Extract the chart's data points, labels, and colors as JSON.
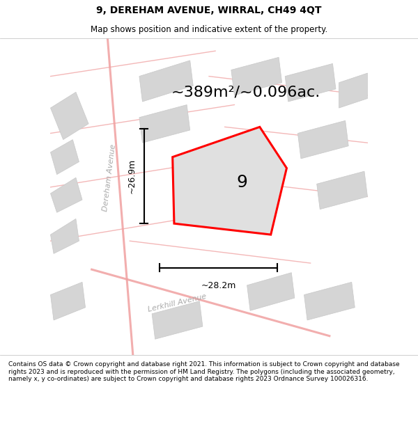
{
  "title": "9, DEREHAM AVENUE, WIRRAL, CH49 4QT",
  "subtitle": "Map shows position and indicative extent of the property.",
  "area_text": "~389m²/~0.096ac.",
  "plot_number": "9",
  "dim_vertical": "~26.9m",
  "dim_horizontal": "~28.2m",
  "street_label_1": "Dereham Avenue",
  "street_label_2": "Lerkhill Avenue",
  "footer_text": "Contains OS data © Crown copyright and database right 2021. This information is subject to Crown copyright and database rights 2023 and is reproduced with the permission of HM Land Registry. The polygons (including the associated geometry, namely x, y co-ordinates) are subject to Crown copyright and database rights 2023 Ordnance Survey 100026316.",
  "bg_color": "#f5f5f5",
  "map_bg": "#eeeeee",
  "plot_color": "#ff0000",
  "plot_fill": "#e0e0e0",
  "road_color": "#f0a0a0",
  "building_color": "#d5d5d5",
  "title_fontsize": 10,
  "subtitle_fontsize": 8.5,
  "area_fontsize": 16,
  "plot_label_fontsize": 18,
  "dim_fontsize": 9,
  "footer_fontsize": 6.5,
  "street_fontsize": 8
}
